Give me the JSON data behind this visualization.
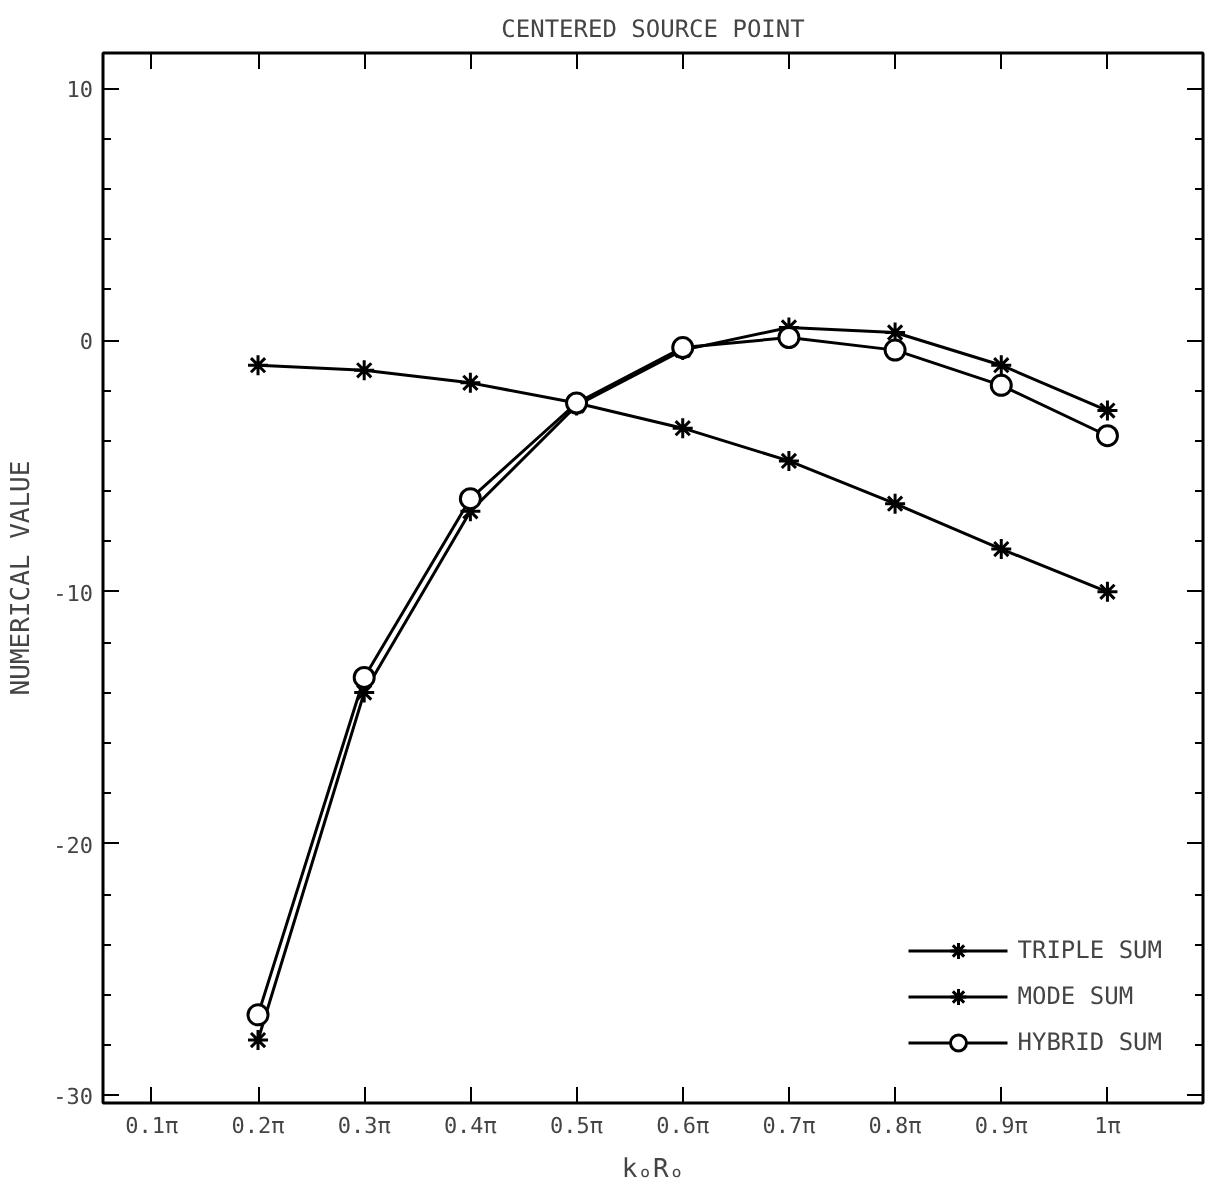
{
  "chart_data": {
    "type": "line",
    "title": "CENTERED SOURCE POINT",
    "xlabel": "kₒRₒ",
    "ylabel": "NUMERICAL VALUE",
    "categories": [
      "0.1π",
      "0.2π",
      "0.3π",
      "0.4π",
      "0.5π",
      "0.6π",
      "0.7π",
      "0.8π",
      "0.9π",
      "1π"
    ],
    "ylim": [
      -30.3,
      11.4
    ],
    "yticks": [
      10,
      0,
      -10,
      -20,
      -30
    ],
    "grid": false,
    "legend": "bottom right",
    "line_style": "solid",
    "series": [
      {
        "name": "TRIPLE SUM",
        "color": "#000000",
        "marker": "cross",
        "values": [
          null,
          -27.8,
          -14,
          -6.8,
          -2.6,
          -0.4,
          0.5,
          0.3,
          -1,
          -2.8
        ]
      },
      {
        "name": "MODE SUM",
        "color": "#000000",
        "marker": "cross",
        "values": [
          null,
          -1,
          -1.2,
          -1.7,
          -2.5,
          -3.5,
          -4.8,
          -6.5,
          -8.3,
          -10
        ]
      },
      {
        "name": "HYBRID SUM",
        "color": "#000000",
        "marker": "circle",
        "values": [
          null,
          -26.8,
          -13.4,
          -6.3,
          -2.5,
          -0.3,
          0.1,
          -0.4,
          -1.8,
          -3.8
        ]
      }
    ]
  }
}
